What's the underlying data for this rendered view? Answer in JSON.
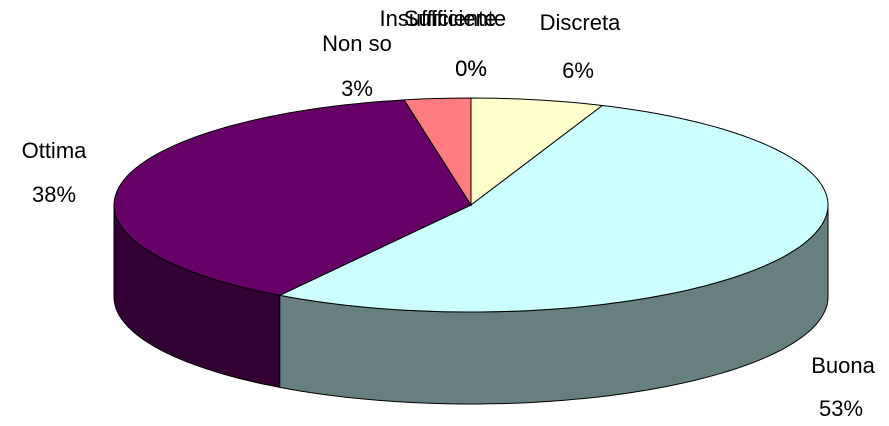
{
  "chart_data": {
    "type": "pie3d",
    "categories": [
      "Insufficiente",
      "Sufficiente",
      "Discreta",
      "Buona",
      "Ottima",
      "Non so"
    ],
    "values": [
      0,
      0,
      6,
      53,
      38,
      3
    ],
    "value_labels": [
      "0%",
      "0%",
      "6%",
      "53%",
      "38%",
      "3%"
    ],
    "colors": [
      "#9999ff",
      "#993366",
      "#ffffcc",
      "#ccffff",
      "#660066",
      "#ff7c80"
    ],
    "side_colors": [
      "#4d4d80",
      "#4d1a33",
      "#808066",
      "#668080",
      "#330033",
      "#803e40"
    ]
  }
}
